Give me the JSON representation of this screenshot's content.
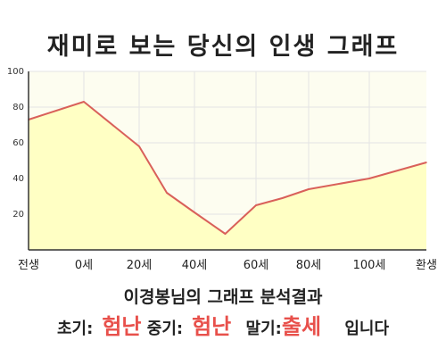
{
  "chart_data": {
    "type": "area",
    "title": "재미로 보는 당신의 인생 그래프",
    "x_ticks": [
      "전생",
      "0세",
      "20세",
      "40세",
      "60세",
      "80세",
      "100세",
      "환생"
    ],
    "y_ticks": [
      "20",
      "40",
      "60",
      "80",
      "100"
    ],
    "ylim": [
      0,
      100
    ],
    "grid": true,
    "series": [
      {
        "points": [
          {
            "x": "전생",
            "y": 73
          },
          {
            "x": "0세",
            "y": 83
          },
          {
            "x": "20세",
            "y": 58
          },
          {
            "x": "30세",
            "y": 32
          },
          {
            "x": "40세",
            "y": 21
          },
          {
            "x": "50세",
            "y": 9
          },
          {
            "x": "60세",
            "y": 25
          },
          {
            "x": "70세",
            "y": 29
          },
          {
            "x": "80세",
            "y": 34
          },
          {
            "x": "100세",
            "y": 40
          },
          {
            "x": "환생",
            "y": 49
          }
        ]
      }
    ],
    "colors": {
      "line": "#d9605a",
      "fill": "#ffffc4",
      "plot_background": "#fdfdf0",
      "grid": "#e4e4e4"
    }
  },
  "summary": {
    "heading": "이경봉님의 그래프 분석결과",
    "early_label": "초기:",
    "early_value": "험난",
    "middle_label": "중기:",
    "middle_value": "험난",
    "late_label": "말기:",
    "late_value": "출세",
    "suffix": "입니다"
  }
}
